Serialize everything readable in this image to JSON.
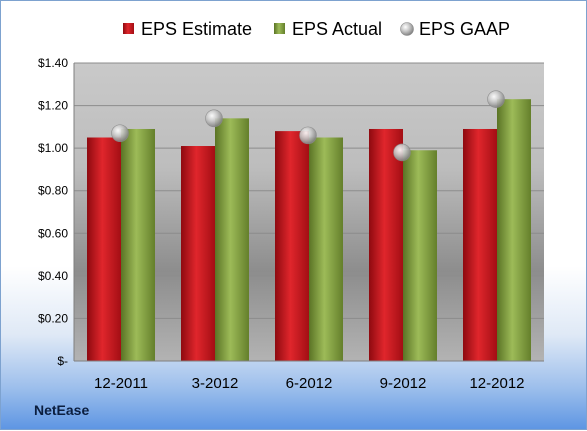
{
  "company": "NetEase",
  "colors": {
    "estimate": "#c8141c",
    "actual": "#7f9c3c",
    "gaap": "#b5b5b5"
  },
  "chart_data": {
    "type": "bar",
    "categories": [
      "12-2011",
      "3-2012",
      "6-2012",
      "9-2012",
      "12-2012"
    ],
    "series": [
      {
        "name": "EPS Estimate",
        "kind": "bar",
        "values": [
          1.05,
          1.01,
          1.08,
          1.09,
          1.09
        ]
      },
      {
        "name": "EPS Actual",
        "kind": "bar",
        "values": [
          1.09,
          1.14,
          1.05,
          0.99,
          1.23
        ]
      },
      {
        "name": "EPS GAAP",
        "kind": "scatter",
        "values": [
          1.07,
          1.14,
          1.06,
          0.98,
          1.23
        ]
      }
    ],
    "ylim": [
      0,
      1.4
    ],
    "yticks": [
      0,
      0.2,
      0.4,
      0.6,
      0.8,
      1.0,
      1.2,
      1.4
    ],
    "ytick_labels": [
      "$-",
      "$0.20",
      "$0.40",
      "$0.60",
      "$0.80",
      "$1.00",
      "$1.20",
      "$1.40"
    ],
    "grid": true,
    "legend_position": "top"
  }
}
